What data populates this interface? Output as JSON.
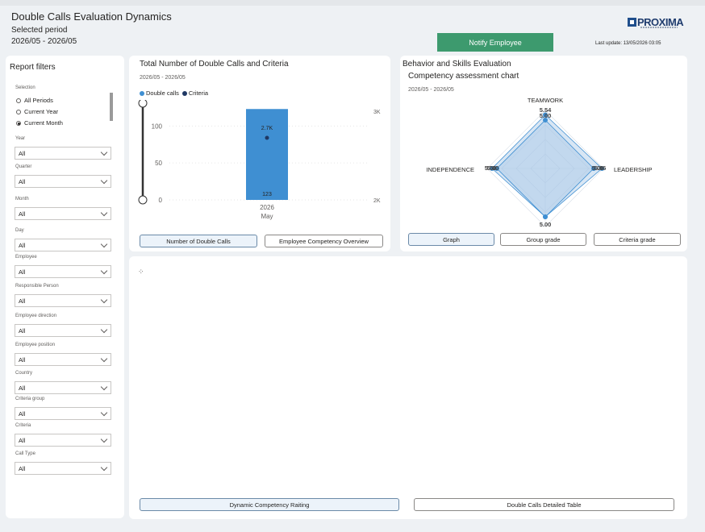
{
  "header": {
    "title": "Double Calls Evaluation Dynamics",
    "period_label": "Selected period",
    "period_value": "2026/05 - 2026/05",
    "notify_button": "Notify Employee",
    "last_update": "Last update: 13/05/2026 03:05",
    "logo_text": "PROXIMA"
  },
  "filters": {
    "title": "Report filters",
    "selection_label": "Selection",
    "selection_options": [
      {
        "label": "All Periods",
        "selected": false
      },
      {
        "label": "Current Year",
        "selected": false
      },
      {
        "label": "Current Month",
        "selected": true
      }
    ],
    "fields": [
      {
        "label": "Year",
        "value": "All"
      },
      {
        "label": "Quarter",
        "value": "All"
      },
      {
        "label": "Month",
        "value": "All"
      },
      {
        "label": "Day",
        "value": "All"
      },
      {
        "label": "Employee",
        "value": "All"
      },
      {
        "label": "Responsible Person",
        "value": "All"
      },
      {
        "label": "Employee direction",
        "value": "All"
      },
      {
        "label": "Employee position",
        "value": "All"
      },
      {
        "label": "Country",
        "value": "All"
      },
      {
        "label": "Criteria group",
        "value": "All"
      },
      {
        "label": "Criteria",
        "value": "All"
      },
      {
        "label": "Call Type",
        "value": "All"
      }
    ]
  },
  "calls_card": {
    "title": "Total Number of Double Calls and Criteria",
    "period": "2026/05 - 2026/05",
    "tabs": [
      "Number of Double Calls",
      "Employee Competency Overview"
    ],
    "active_tab": 0
  },
  "skills_card": {
    "title": "Behavior and Skills Evaluation",
    "chart_title": "Competency assessment chart",
    "period": "2026/05 - 2026/05",
    "tabs": [
      "Graph",
      "Group grade",
      "Criteria grade"
    ],
    "active_tab": 0
  },
  "bottom_card": {
    "loader": "⁘",
    "tabs": [
      "Dynamic Competency Raiting",
      "Double Calls Detailed Table"
    ],
    "active_tab": 0
  },
  "colors": {
    "bar": "#3f8fd2",
    "criteria": "#1f3864",
    "radar_fill": "#a9c7e6",
    "notify": "#3d9a6e"
  },
  "chart_data": [
    {
      "type": "bar",
      "categories": [
        "2026 May"
      ],
      "x_tick_year": "2026",
      "x_tick_month": "May",
      "series": [
        {
          "name": "Double calls",
          "values": [
            123
          ],
          "axis": "left",
          "color": "#3f8fd2"
        },
        {
          "name": "Criteria",
          "values": [
            2700
          ],
          "axis": "right",
          "color": "#1f3864",
          "marker": "dot"
        }
      ],
      "data_labels": {
        "double_calls": "123",
        "criteria": "2.7K"
      },
      "y_left": {
        "ticks": [
          "0",
          "50",
          "100"
        ],
        "range": [
          0,
          120
        ]
      },
      "y_right": {
        "ticks": [
          "2K",
          "3K"
        ],
        "range": [
          2000,
          3000
        ]
      },
      "legend": "top-left"
    },
    {
      "type": "radar",
      "axes": [
        "TEAMWORK",
        "LEADERSHIP",
        "",
        "INDEPENDENCE"
      ],
      "series_values": [
        [
          5.54,
          5.86,
          5.0,
          5.5
        ],
        [
          5.0,
          5.0,
          5.0,
          5.0
        ]
      ],
      "value_labels": [
        {
          "axis": 0,
          "labels": [
            "5.54",
            "5.00"
          ]
        },
        {
          "axis": 1,
          "labels": [
            "5.86",
            "5.00"
          ]
        },
        {
          "axis": 2,
          "labels": [
            "5.00"
          ]
        },
        {
          "axis": 3,
          "labels": [
            "5.50",
            "5.00"
          ]
        }
      ],
      "range": [
        0,
        6
      ],
      "grid": true
    }
  ]
}
